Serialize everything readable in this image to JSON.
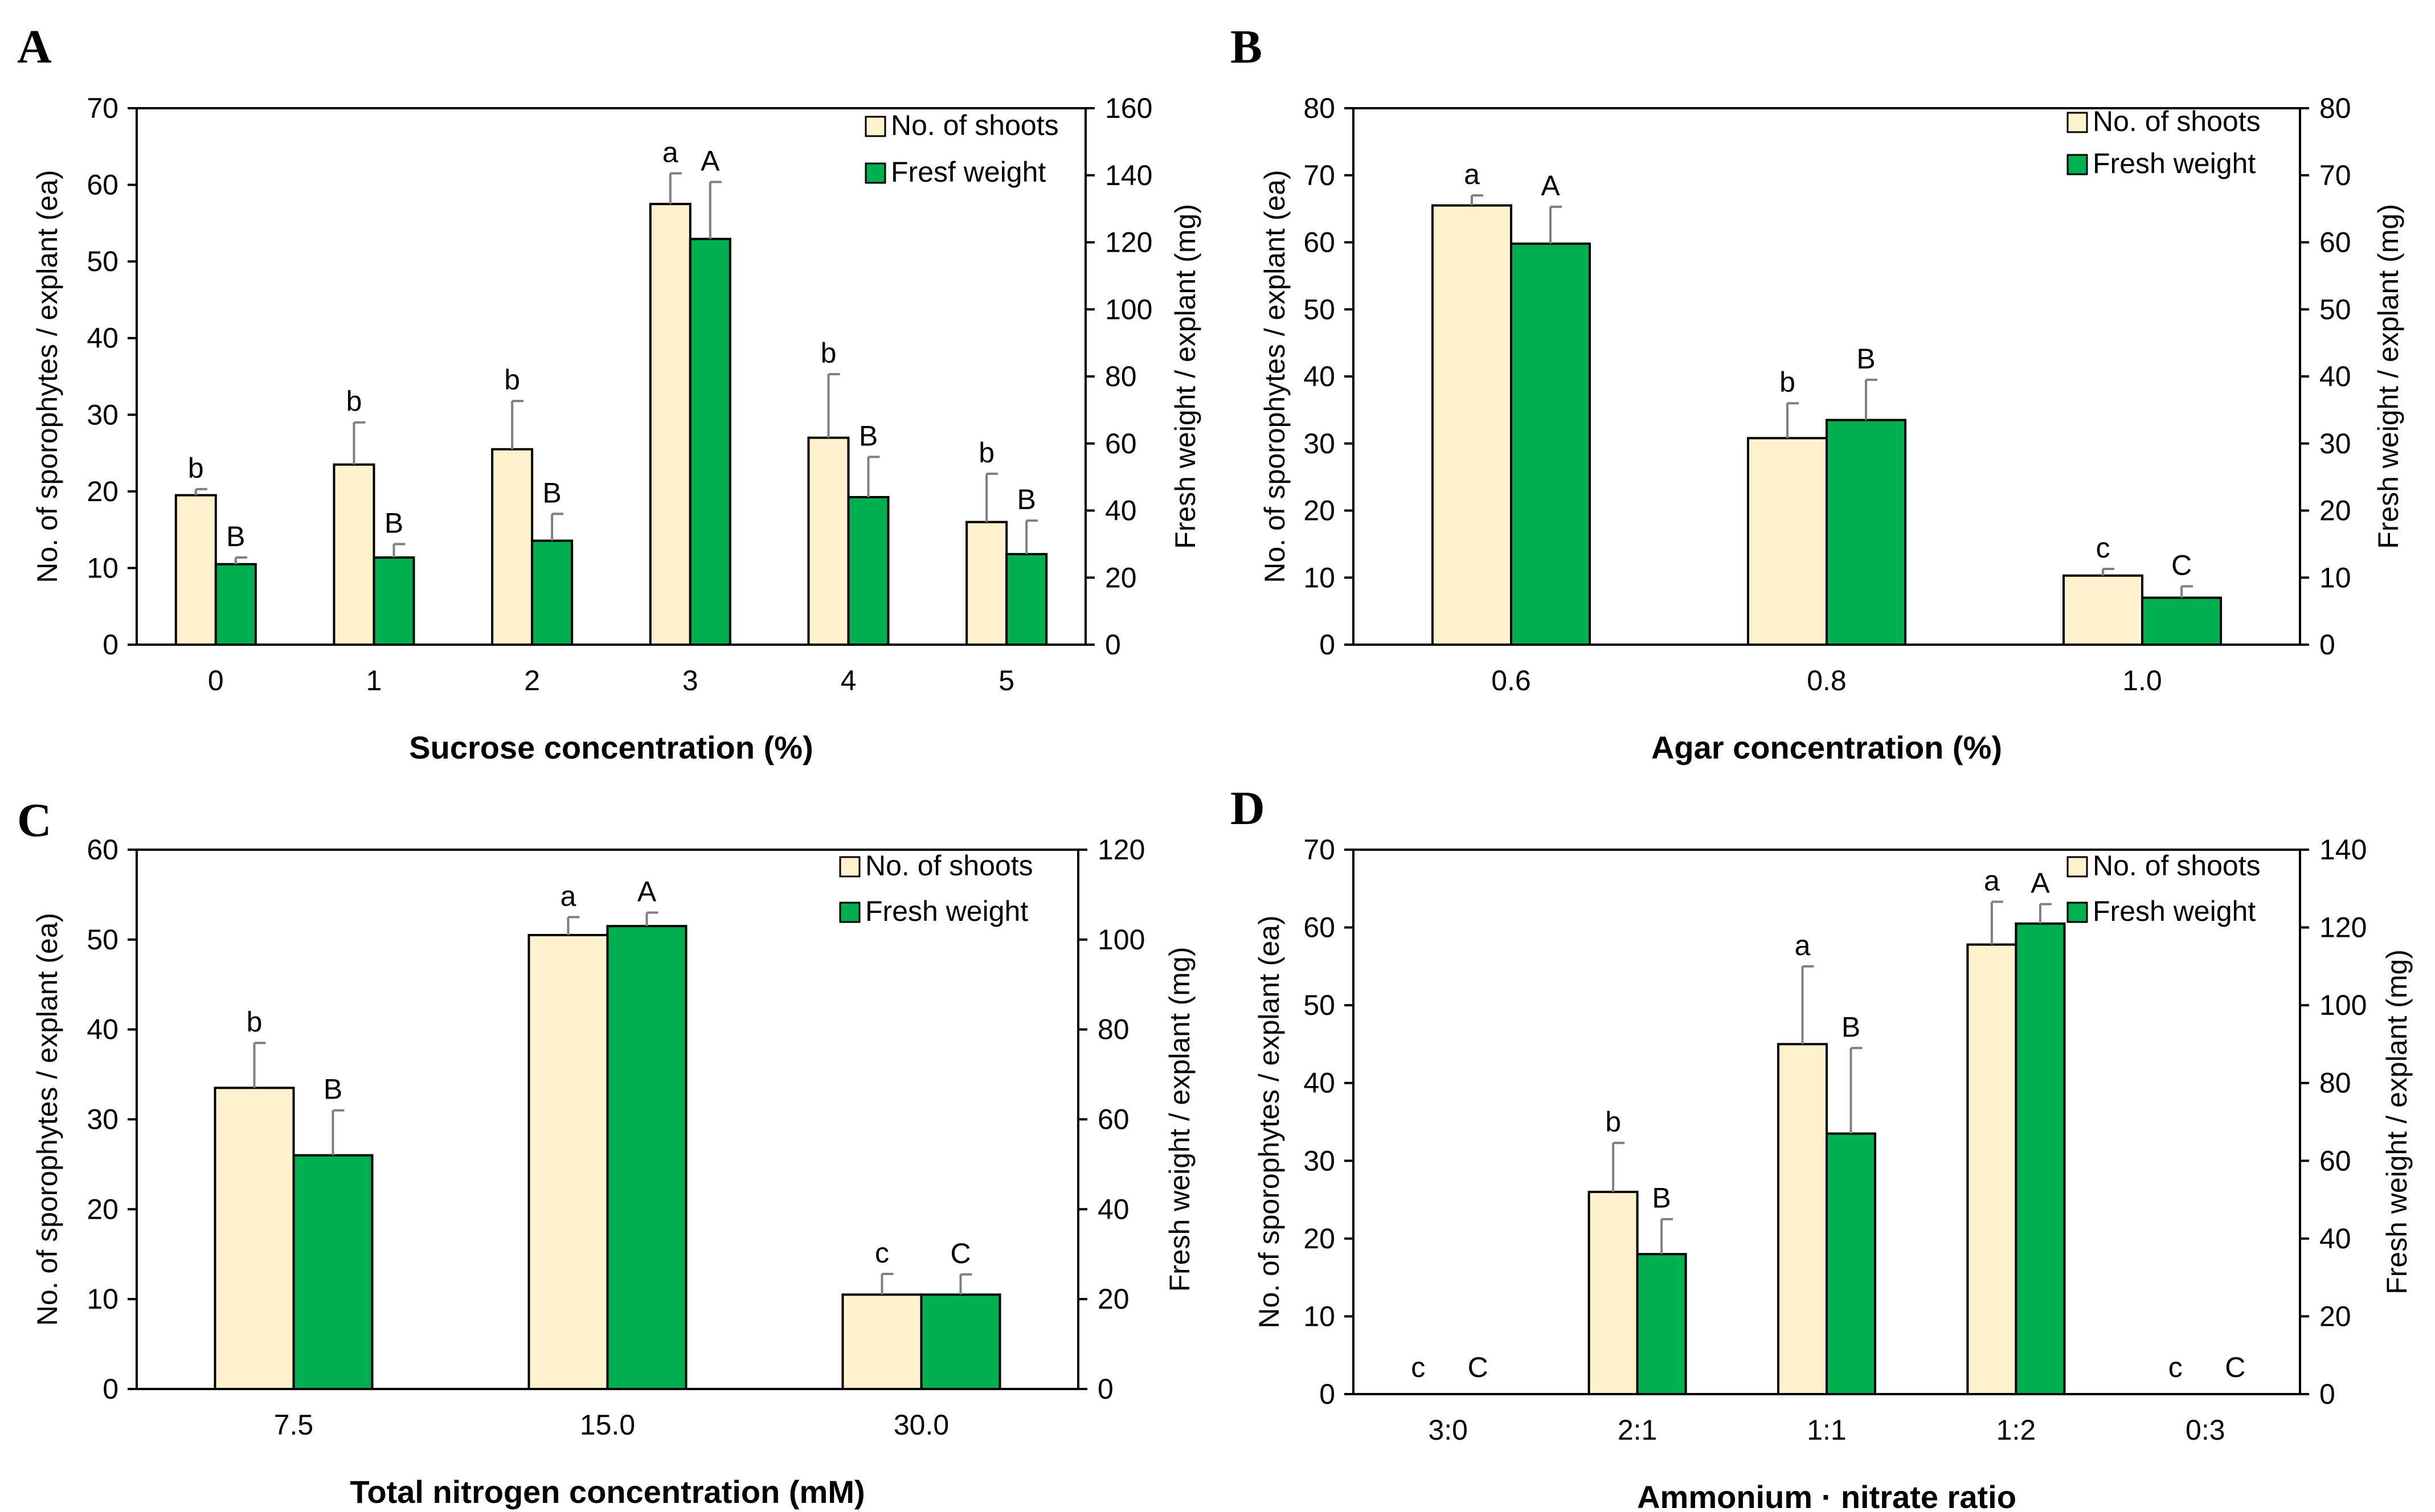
{
  "colors": {
    "shoots": "#fff2cc",
    "fresh": "#00b050",
    "error": "#7f7f7f",
    "axis": "#000000"
  },
  "chart_data": [
    {
      "panel": "A",
      "type": "bar",
      "xlabel": "Sucrose concentration (%)",
      "ylabel": "No. of sporophytes / explant  (ea)",
      "y2label": "Fresh weight / explant (mg)",
      "ylim": [
        0,
        70
      ],
      "yticks": [
        0,
        10,
        20,
        30,
        40,
        50,
        60,
        70
      ],
      "y2lim": [
        0,
        160
      ],
      "y2ticks": [
        0,
        20,
        40,
        60,
        80,
        100,
        120,
        140,
        160
      ],
      "categories": [
        "0",
        "1",
        "2",
        "3",
        "4",
        "5"
      ],
      "series": [
        {
          "name": "No. of shoots",
          "axis": "left",
          "values": [
            19.5,
            23.5,
            25.5,
            57.5,
            27,
            16
          ],
          "errors": [
            0.8,
            5.5,
            6.3,
            4,
            8.3,
            6.3
          ],
          "labels": [
            "b",
            "b",
            "b",
            "a",
            "b",
            "b"
          ]
        },
        {
          "name": "Fresf weight",
          "axis": "right",
          "values": [
            24,
            26,
            31,
            121,
            44,
            27
          ],
          "errors": [
            2,
            4,
            8,
            17,
            12,
            10
          ],
          "labels": [
            "B",
            "B",
            "B",
            "A",
            "B",
            "B"
          ]
        }
      ],
      "legend": "top-right"
    },
    {
      "panel": "B",
      "type": "bar",
      "xlabel": "Agar concentration (%)",
      "ylabel": "No. of sporophytes / explant (ea)",
      "y2label": "Fresh weight / explant (mg)",
      "ylim": [
        0,
        80
      ],
      "yticks": [
        0,
        10,
        20,
        30,
        40,
        50,
        60,
        70,
        80
      ],
      "y2lim": [
        0,
        80
      ],
      "y2ticks": [
        0,
        10,
        20,
        30,
        40,
        50,
        60,
        70,
        80
      ],
      "categories": [
        "0.6",
        "0.8",
        "1.0"
      ],
      "series": [
        {
          "name": "No. of shoots",
          "axis": "left",
          "values": [
            65.5,
            30.8,
            10.3
          ],
          "errors": [
            1.5,
            5.2,
            1
          ],
          "labels": [
            "a",
            "b",
            "c"
          ]
        },
        {
          "name": "Fresh weight",
          "axis": "right",
          "values": [
            59.8,
            33.5,
            7
          ],
          "errors": [
            5.5,
            6,
            1.7
          ],
          "labels": [
            "A",
            "B",
            "C"
          ]
        }
      ],
      "legend": "top-right"
    },
    {
      "panel": "C",
      "type": "bar",
      "xlabel": "Total nitrogen concentration (mM)",
      "ylabel": "No. of sporophytes / explant (ea)",
      "y2label": "Fresh weight / explant (mg)",
      "ylim": [
        0,
        60
      ],
      "yticks": [
        0,
        10,
        20,
        30,
        40,
        50,
        60
      ],
      "y2lim": [
        0,
        120
      ],
      "y2ticks": [
        0,
        20,
        40,
        60,
        80,
        100,
        120
      ],
      "categories": [
        "7.5",
        "15.0",
        "30.0"
      ],
      "series": [
        {
          "name": "No. of shoots",
          "axis": "left",
          "values": [
            33.5,
            50.5,
            10.5
          ],
          "errors": [
            5,
            2,
            2.3
          ],
          "labels": [
            "b",
            "a",
            "c"
          ]
        },
        {
          "name": "Fresh weight",
          "axis": "right",
          "values": [
            52,
            103,
            21
          ],
          "errors": [
            10,
            3,
            4.5
          ],
          "labels": [
            "B",
            "A",
            "C"
          ]
        }
      ],
      "legend": "top-right"
    },
    {
      "panel": "D",
      "type": "bar",
      "xlabel": "Ammonium · nitrate ratio",
      "ylabel": "No. of sporophytes / explant (ea)",
      "y2label": "Fresh weight / explant (mg)",
      "ylim": [
        0,
        70
      ],
      "yticks": [
        0,
        10,
        20,
        30,
        40,
        50,
        60,
        70
      ],
      "y2lim": [
        0,
        140
      ],
      "y2ticks": [
        0,
        20,
        40,
        60,
        80,
        100,
        120,
        140
      ],
      "categories": [
        "3:0",
        "2:1",
        "1:1",
        "1:2",
        "0:3"
      ],
      "series": [
        {
          "name": "No. of shoots",
          "axis": "left",
          "values": [
            0,
            26,
            45,
            57.8,
            0
          ],
          "errors": [
            0,
            6.3,
            10,
            5.5,
            0
          ],
          "labels": [
            "c",
            "b",
            "a",
            "a",
            "c"
          ]
        },
        {
          "name": "Fresh weight",
          "axis": "right",
          "values": [
            0,
            36,
            67,
            121,
            0
          ],
          "errors": [
            0,
            9,
            22,
            5,
            0
          ],
          "labels": [
            "C",
            "B",
            "B",
            "A",
            "C"
          ]
        }
      ],
      "legend": "top-right"
    }
  ]
}
